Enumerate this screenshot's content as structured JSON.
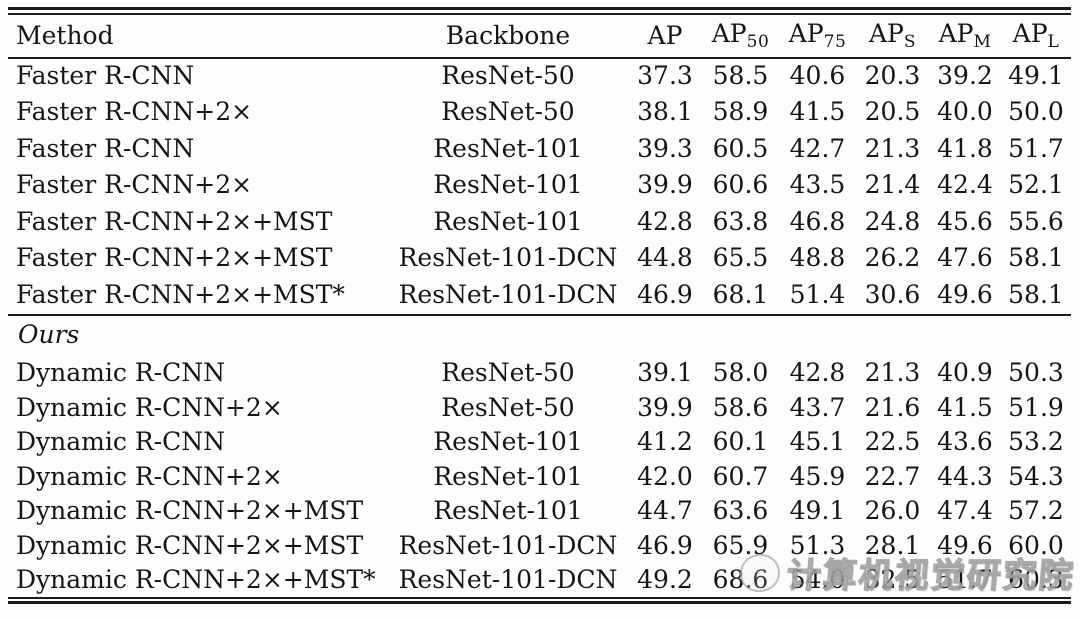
{
  "page": {
    "background": "#fdfdfd",
    "rule_color": "#1b1b1b"
  },
  "table": {
    "header": {
      "columns": [
        {
          "text": "Method",
          "sub": ""
        },
        {
          "text": "Backbone",
          "sub": ""
        },
        {
          "text": "AP",
          "sub": ""
        },
        {
          "text": "AP",
          "sub": "50"
        },
        {
          "text": "AP",
          "sub": "75"
        },
        {
          "text": "AP",
          "sub": "S"
        },
        {
          "text": "AP",
          "sub": "M"
        },
        {
          "text": "AP",
          "sub": "L"
        }
      ]
    },
    "sections": [
      {
        "label": "",
        "row_class": "row-a",
        "rows": [
          {
            "method": "Faster R-CNN",
            "backbone": "ResNet-50",
            "values": [
              "37.3",
              "58.5",
              "40.6",
              "20.3",
              "39.2",
              "49.1"
            ]
          },
          {
            "method": "Faster R-CNN+2×",
            "backbone": "ResNet-50",
            "values": [
              "38.1",
              "58.9",
              "41.5",
              "20.5",
              "40.0",
              "50.0"
            ]
          },
          {
            "method": "Faster R-CNN",
            "backbone": "ResNet-101",
            "values": [
              "39.3",
              "60.5",
              "42.7",
              "21.3",
              "41.8",
              "51.7"
            ]
          },
          {
            "method": "Faster R-CNN+2×",
            "backbone": "ResNet-101",
            "values": [
              "39.9",
              "60.6",
              "43.5",
              "21.4",
              "42.4",
              "52.1"
            ]
          },
          {
            "method": "Faster R-CNN+2×+MST",
            "backbone": "ResNet-101",
            "values": [
              "42.8",
              "63.8",
              "46.8",
              "24.8",
              "45.6",
              "55.6"
            ]
          },
          {
            "method": "Faster R-CNN+2×+MST",
            "backbone": "ResNet-101-DCN",
            "values": [
              "44.8",
              "65.5",
              "48.8",
              "26.2",
              "47.6",
              "58.1"
            ]
          },
          {
            "method": "Faster R-CNN+2×+MST*",
            "backbone": "ResNet-101-DCN",
            "values": [
              "46.9",
              "68.1",
              "51.4",
              "30.6",
              "49.6",
              "58.1"
            ]
          }
        ]
      },
      {
        "label": "Ours",
        "row_class": "row-b",
        "rows": [
          {
            "method": "Dynamic R-CNN",
            "backbone": "ResNet-50",
            "values": [
              "39.1",
              "58.0",
              "42.8",
              "21.3",
              "40.9",
              "50.3"
            ]
          },
          {
            "method": "Dynamic R-CNN+2×",
            "backbone": "ResNet-50",
            "values": [
              "39.9",
              "58.6",
              "43.7",
              "21.6",
              "41.5",
              "51.9"
            ]
          },
          {
            "method": "Dynamic R-CNN",
            "backbone": "ResNet-101",
            "values": [
              "41.2",
              "60.1",
              "45.1",
              "22.5",
              "43.6",
              "53.2"
            ]
          },
          {
            "method": "Dynamic R-CNN+2×",
            "backbone": "ResNet-101",
            "values": [
              "42.0",
              "60.7",
              "45.9",
              "22.7",
              "44.3",
              "54.3"
            ]
          },
          {
            "method": "Dynamic R-CNN+2×+MST",
            "backbone": "ResNet-101",
            "values": [
              "44.7",
              "63.6",
              "49.1",
              "26.0",
              "47.4",
              "57.2"
            ]
          },
          {
            "method": "Dynamic R-CNN+2×+MST",
            "backbone": "ResNet-101-DCN",
            "values": [
              "46.9",
              "65.9",
              "51.3",
              "28.1",
              "49.6",
              "60.0"
            ]
          },
          {
            "method": "Dynamic R-CNN+2×+MST*",
            "backbone": "ResNet-101-DCN",
            "values": [
              "49.2",
              "68.6",
              "54.0",
              "32.5",
              "51.7",
              "60.3"
            ]
          }
        ]
      }
    ]
  },
  "watermark": {
    "text": "计算机视觉研究院"
  }
}
